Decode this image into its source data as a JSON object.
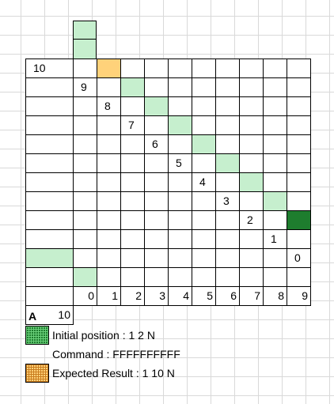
{
  "grid": {
    "row_labels": [
      "10",
      "9",
      "8",
      "7",
      "6",
      "5",
      "4",
      "3",
      "2",
      "1",
      "0"
    ],
    "col_labels": [
      "0",
      "1",
      "2",
      "3",
      "4",
      "5",
      "6",
      "7",
      "8",
      "9",
      "10"
    ],
    "highlight_column": 1,
    "initial_cell": {
      "x": 1,
      "y": 2
    },
    "expected_cell": {
      "x": 1,
      "y": 10
    },
    "band_color": "#c6efce"
  },
  "legend": {
    "title": "A",
    "initial_label": "Initial position : 1 2 N",
    "command_label": "Command : FFFFFFFFFF",
    "expected_label": "Expected Result : 1 10 N",
    "initial_swatch_icon": "green-pattern-swatch",
    "expected_swatch_icon": "orange-pattern-swatch"
  }
}
